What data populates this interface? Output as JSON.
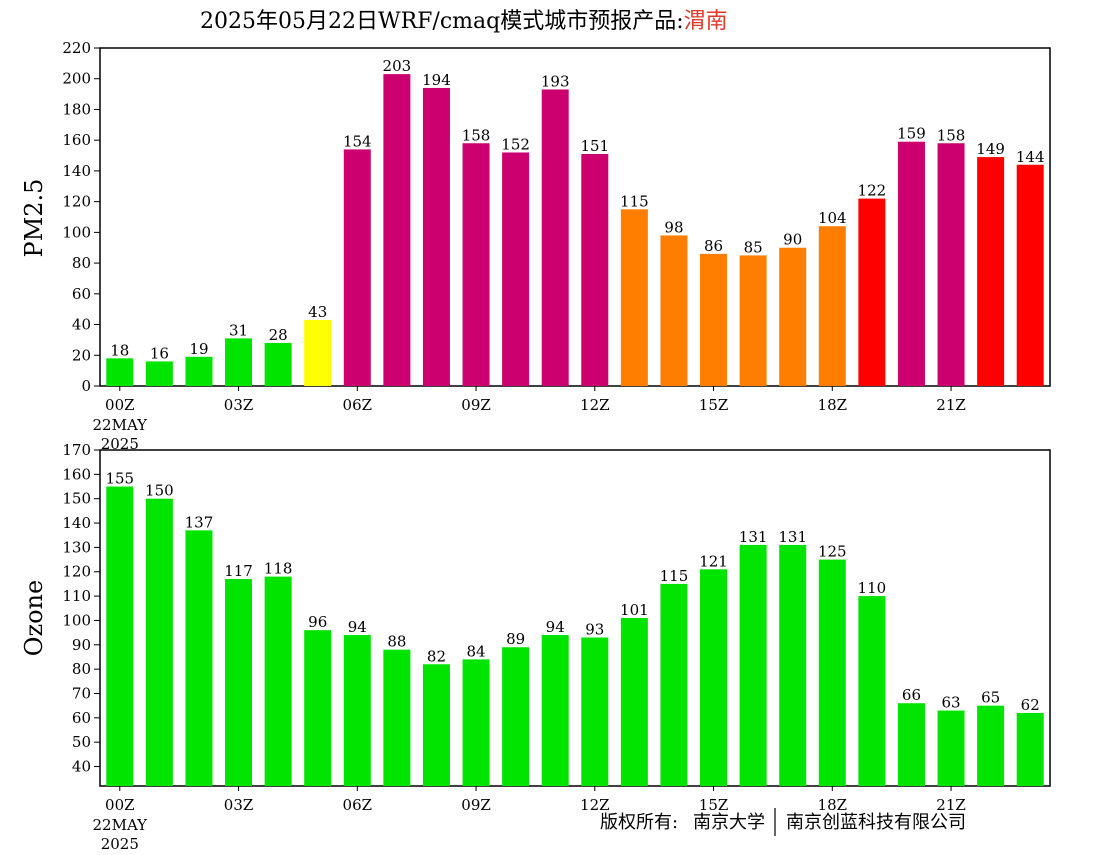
{
  "header": {
    "title_prefix": "2025年05月22日WRF/cmaq模式城市预报产品:",
    "city": "渭南",
    "city_color": "#e03a2b"
  },
  "footer": {
    "copyright_label": "版权所有:",
    "org1": "南京大学",
    "org2": "南京创蓝科技有限公司"
  },
  "colors": {
    "green": "#00e400",
    "yellow": "#ffff00",
    "orange": "#ff7e00",
    "red": "#ff0000",
    "purple": "#cc006e"
  },
  "chart_data": [
    {
      "type": "bar",
      "ylabel": "PM2.5",
      "ylim": [
        0,
        220
      ],
      "yticks": [
        0,
        20,
        40,
        60,
        80,
        100,
        120,
        140,
        160,
        180,
        200,
        220
      ],
      "x_tick_labels": [
        {
          "index": 0,
          "label": "00Z"
        },
        {
          "index": 3,
          "label": "03Z"
        },
        {
          "index": 6,
          "label": "06Z"
        },
        {
          "index": 9,
          "label": "09Z"
        },
        {
          "index": 12,
          "label": "12Z"
        },
        {
          "index": 15,
          "label": "15Z"
        },
        {
          "index": 18,
          "label": "18Z"
        },
        {
          "index": 21,
          "label": "21Z"
        }
      ],
      "date_label": [
        "22MAY",
        "2025"
      ],
      "values": [
        18,
        16,
        19,
        31,
        28,
        43,
        154,
        203,
        194,
        158,
        152,
        193,
        151,
        115,
        98,
        86,
        85,
        90,
        104,
        122,
        159,
        158,
        149,
        144
      ],
      "bar_colors": [
        "green",
        "green",
        "green",
        "green",
        "green",
        "yellow",
        "purple",
        "purple",
        "purple",
        "purple",
        "purple",
        "purple",
        "purple",
        "orange",
        "orange",
        "orange",
        "orange",
        "orange",
        "orange",
        "red",
        "purple",
        "purple",
        "red",
        "red"
      ]
    },
    {
      "type": "bar",
      "ylabel": "Ozone",
      "ylim": [
        32,
        170
      ],
      "yticks": [
        40,
        50,
        60,
        70,
        80,
        90,
        100,
        110,
        120,
        130,
        140,
        150,
        160,
        170
      ],
      "x_tick_labels": [
        {
          "index": 0,
          "label": "00Z"
        },
        {
          "index": 3,
          "label": "03Z"
        },
        {
          "index": 6,
          "label": "06Z"
        },
        {
          "index": 9,
          "label": "09Z"
        },
        {
          "index": 12,
          "label": "12Z"
        },
        {
          "index": 15,
          "label": "15Z"
        },
        {
          "index": 18,
          "label": "18Z"
        },
        {
          "index": 21,
          "label": "21Z"
        }
      ],
      "date_label": [
        "22MAY",
        "2025"
      ],
      "values": [
        155,
        150,
        137,
        117,
        118,
        96,
        94,
        88,
        82,
        84,
        89,
        94,
        93,
        101,
        115,
        121,
        131,
        131,
        125,
        110,
        66,
        63,
        65,
        62
      ],
      "bar_colors": [
        "green",
        "green",
        "green",
        "green",
        "green",
        "green",
        "green",
        "green",
        "green",
        "green",
        "green",
        "green",
        "green",
        "green",
        "green",
        "green",
        "green",
        "green",
        "green",
        "green",
        "green",
        "green",
        "green",
        "green"
      ]
    }
  ]
}
